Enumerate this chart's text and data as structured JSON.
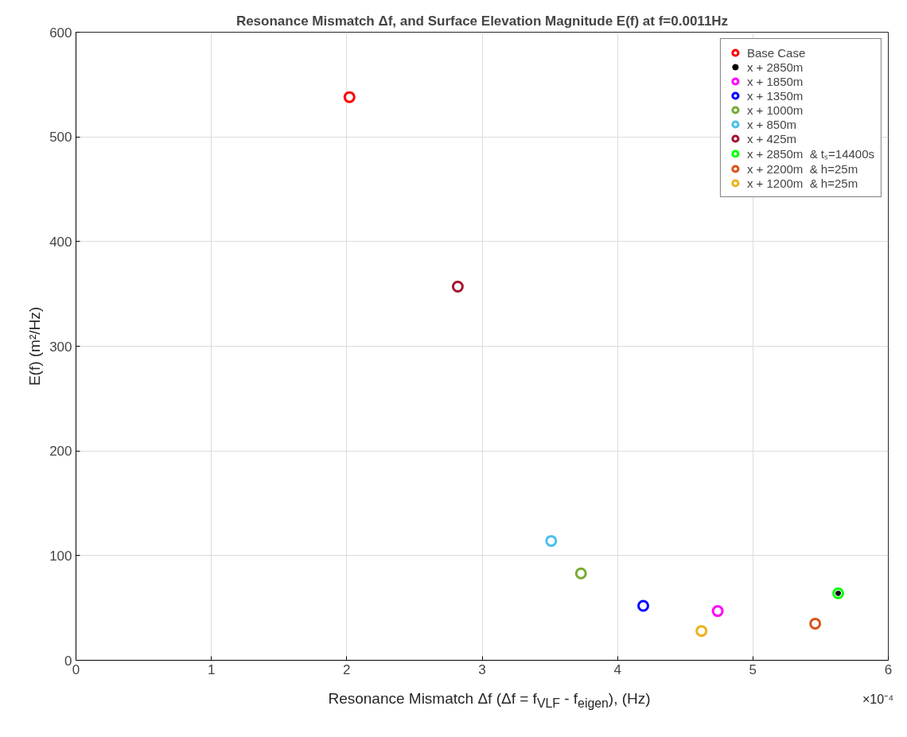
{
  "chart_data": {
    "type": "scatter",
    "title": "Resonance Mismatch Δf, and Surface Elevation Magnitude E(f) at f=0.0011Hz",
    "xlabel": "Resonance Mismatch Δf (Δf = f$_{VLF}$ - f$_{eigen}$), (Hz)",
    "ylabel": "E(f) (m²/Hz)",
    "xlim": [
      0,
      6
    ],
    "xticks": [
      0,
      1,
      2,
      3,
      4,
      5,
      6
    ],
    "ylim": [
      0,
      600
    ],
    "yticks": [
      0,
      100,
      200,
      300,
      400,
      500,
      600
    ],
    "grid": true,
    "legend": "top right",
    "marker": "circle",
    "annotations": [
      "×10⁻⁴"
    ],
    "series": [
      {
        "name": "Base Case",
        "color": "#ff0000",
        "x": [
          2.02
        ],
        "values": [
          538
        ]
      },
      {
        "name": "x + 2850m",
        "color": "#000000",
        "x": [
          5.63
        ],
        "values": [
          64
        ],
        "marker": "dot"
      },
      {
        "name": "x + 1850m",
        "color": "#ff00ff",
        "x": [
          4.74
        ],
        "values": [
          47
        ]
      },
      {
        "name": "x + 1350m",
        "color": "#0000ff",
        "x": [
          4.19
        ],
        "values": [
          52
        ]
      },
      {
        "name": "x + 1000m",
        "color": "#77ac30",
        "x": [
          3.73
        ],
        "values": [
          83
        ]
      },
      {
        "name": "x + 850m",
        "color": "#4dbeee",
        "x": [
          3.51
        ],
        "values": [
          114
        ]
      },
      {
        "name": "x + 425m",
        "color": "#a2142f",
        "x": [
          2.82
        ],
        "values": [
          357
        ]
      },
      {
        "name": "x + 2850m  & tₛ=14400s",
        "color": "#00ff00",
        "x": [
          5.63
        ],
        "values": [
          64
        ]
      },
      {
        "name": "x + 2200m  & h=25m",
        "color": "#d95319",
        "x": [
          5.46
        ],
        "values": [
          35
        ]
      },
      {
        "name": "x + 1200m  & h=25m",
        "color": "#edb120",
        "x": [
          4.62
        ],
        "values": [
          28
        ]
      }
    ]
  }
}
